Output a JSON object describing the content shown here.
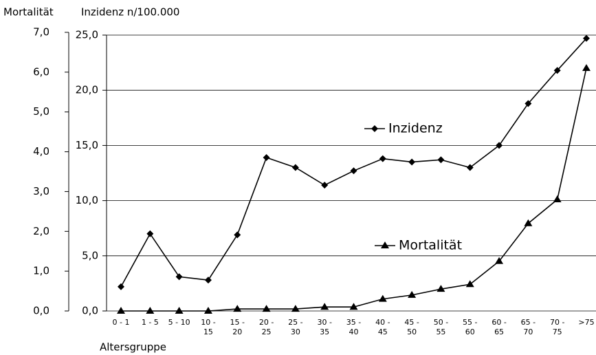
{
  "chart_data": {
    "type": "line",
    "y_label": "Mortalität",
    "y2_label": "Inzidenz n/100.000",
    "x_label": "Altersgruppe",
    "categories": [
      "0 - 1",
      "1 - 5",
      "5 - 10",
      "10 - 15",
      "15 - 20",
      "20 - 25",
      "25 - 30",
      "30 - 35",
      "35 - 40",
      "40 - 45",
      "45 - 50",
      "50 - 55",
      "55 - 60",
      "60 - 65",
      "65 - 70",
      "70 - 75",
      ">75"
    ],
    "series": [
      {
        "name": "Inzidenz",
        "color": "#000000",
        "marker": "diamond",
        "axis": "y2",
        "values": [
          2.2,
          7.0,
          3.1,
          2.8,
          6.9,
          13.9,
          13.0,
          11.4,
          12.7,
          13.8,
          13.5,
          13.7,
          13.0,
          15.0,
          18.8,
          21.8,
          24.7
        ]
      },
      {
        "name": "Mortalität",
        "color": "#000000",
        "marker": "triangle",
        "values": [
          0.0,
          0.0,
          0.0,
          0.0,
          0.05,
          0.05,
          0.05,
          0.1,
          0.1,
          0.3,
          0.4,
          0.55,
          0.67,
          1.25,
          2.2,
          2.8,
          6.1
        ]
      }
    ],
    "ylim": [
      0,
      7
    ],
    "yticks": [
      {
        "value": 0,
        "label": "0,0"
      },
      {
        "value": 1,
        "label": "1,0"
      },
      {
        "value": 2,
        "label": "2,0"
      },
      {
        "value": 3,
        "label": "3,0"
      },
      {
        "value": 4,
        "label": "4,0"
      },
      {
        "value": 5,
        "label": "5,0"
      },
      {
        "value": 6,
        "label": "6,0"
      },
      {
        "value": 7,
        "label": "7,0"
      }
    ],
    "y2lim": [
      0,
      25
    ],
    "y2ticks": [
      {
        "value": 0,
        "label": "0,0"
      },
      {
        "value": 5,
        "label": "5,0"
      },
      {
        "value": 10,
        "label": "10,0"
      },
      {
        "value": 15,
        "label": "15,0"
      },
      {
        "value": 20,
        "label": "20,0"
      },
      {
        "value": 25,
        "label": "25,0"
      }
    ],
    "grid": true
  }
}
